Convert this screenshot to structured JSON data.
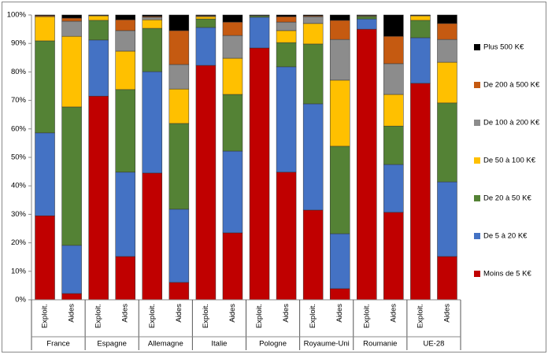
{
  "chart_data": {
    "type": "stacked_bar_100",
    "categories": [
      "Exploit.",
      "Aides",
      "Exploit.",
      "Aides",
      "Exploit.",
      "Aides",
      "Exploit.",
      "Aides",
      "Exploit.",
      "Aides",
      "Exploit.",
      "Aides",
      "Exploit.",
      "Aides",
      "Exploit.",
      "Aides"
    ],
    "groups": [
      "France",
      "Espagne",
      "Allemagne",
      "Italie",
      "Pologne",
      "Royaume-Uni",
      "Roumanie",
      "UE-28"
    ],
    "series": [
      {
        "name": "Moins de 5 K€",
        "color": "#c00000",
        "values": [
          29.5,
          2.2,
          71.5,
          15.2,
          44.5,
          6.1,
          82.3,
          23.5,
          88.4,
          44.8,
          31.5,
          3.9,
          95.0,
          30.7,
          76.0,
          15.2
        ]
      },
      {
        "name": "De 5 à 20 K€",
        "color": "#4472c4",
        "values": [
          29.1,
          16.9,
          19.7,
          29.6,
          35.6,
          25.7,
          13.3,
          28.7,
          10.8,
          37.0,
          37.3,
          19.3,
          3.6,
          16.8,
          16.0,
          26.2
        ]
      },
      {
        "name": "De 20 à 50 K€",
        "color": "#548235",
        "values": [
          32.3,
          48.6,
          6.9,
          29.0,
          15.2,
          30.1,
          3.0,
          19.9,
          0.5,
          8.5,
          21.0,
          30.7,
          0.8,
          13.5,
          6.1,
          27.7
        ]
      },
      {
        "name": "De 50 à 100 K€",
        "color": "#ffc000",
        "values": [
          8.5,
          24.8,
          1.6,
          13.5,
          3.0,
          12.1,
          0.8,
          12.7,
          0.1,
          4.2,
          7.2,
          23.2,
          0.2,
          11.1,
          1.6,
          14.3
        ]
      },
      {
        "name": "De 100 à 200 K€",
        "color": "#8c8c8c",
        "values": [
          0.1,
          5.3,
          0.1,
          7.2,
          0.9,
          8.6,
          0.2,
          8.0,
          0.1,
          3.0,
          2.4,
          14.3,
          0.2,
          10.8,
          0.1,
          8.0
        ]
      },
      {
        "name": "De 200 à 500 K€",
        "color": "#c55a11",
        "values": [
          0.3,
          1.1,
          0.1,
          3.8,
          0.3,
          11.9,
          0.2,
          4.7,
          0.1,
          1.9,
          0.3,
          6.7,
          0.1,
          9.6,
          0.1,
          5.6
        ]
      },
      {
        "name": "Plus 500 K€",
        "color": "#000000",
        "values": [
          0.2,
          1.1,
          0.1,
          1.7,
          0.5,
          5.5,
          0.2,
          2.5,
          0.0,
          0.6,
          0.3,
          1.9,
          0.1,
          7.5,
          0.1,
          3.0
        ]
      }
    ],
    "ylim": [
      0,
      100
    ],
    "yticks": [
      {
        "value": 0,
        "label": "0%"
      },
      {
        "value": 10,
        "label": "10%"
      },
      {
        "value": 20,
        "label": "20%"
      },
      {
        "value": 30,
        "label": "30%"
      },
      {
        "value": 40,
        "label": "40%"
      },
      {
        "value": 50,
        "label": "50%"
      },
      {
        "value": 60,
        "label": "60%"
      },
      {
        "value": 70,
        "label": "70%"
      },
      {
        "value": 80,
        "label": "80%"
      },
      {
        "value": 90,
        "label": "90%"
      },
      {
        "value": 100,
        "label": "100%"
      }
    ],
    "legend": "right",
    "grid": false
  }
}
